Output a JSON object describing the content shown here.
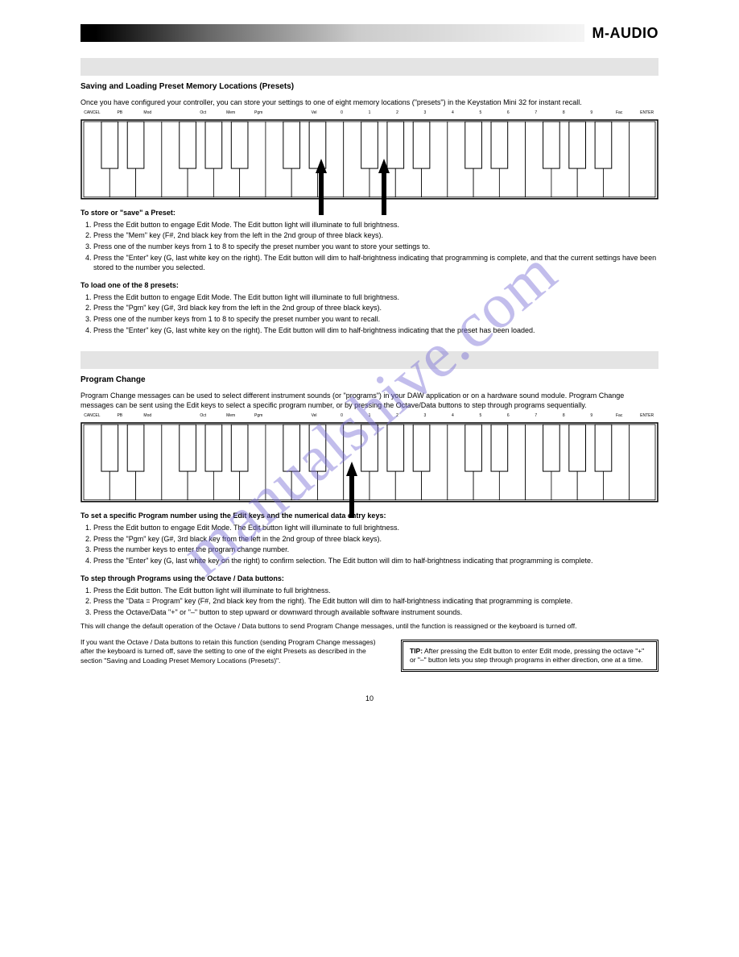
{
  "brand": "M-AUDIO",
  "watermark": "manualshive.com",
  "page_number": "10",
  "section1": {
    "heading_bg": "#e4e4e4",
    "title": "Saving and Loading Preset Memory Locations (Presets)",
    "intro": "Once you have configured your controller, you can store your settings to one of eight memory locations (\"presets\") in the Keystation Mini 32 for instant recall.",
    "save_title": "To store or \"save\" a Preset:",
    "save_steps": [
      "Press the Edit button to engage Edit Mode. The Edit button light will illuminate to full brightness.",
      "Press the \"Mem\" key (F#, 2nd black key from the left in the 2nd group of three black keys).",
      "Press one of the number keys from 1 to 8 to specify the preset number you want to store your settings to.",
      "Press the \"Enter\" key (G, last white key on the right). The Edit button will dim to half-brightness indicating that programming is complete, and that the current settings have been stored to the number you selected."
    ],
    "load_title": "To load one of the 8 presets:",
    "load_steps": [
      "Press the Edit button to engage Edit Mode. The Edit button light will illuminate to full brightness.",
      "Press the \"Pgm\" key (G#, 3rd black key from the left in the 2nd group of three black keys).",
      "Press one of the number keys from 1 to 8 to specify the preset number you want to recall.",
      "Press the \"Enter\" key (G, last white key on the right). The Edit button will dim to half-brightness indicating that the preset has been loaded."
    ]
  },
  "section2": {
    "title": "Program Change",
    "intro": "Program Change messages can be used to select different instrument sounds (or \"programs\") in your DAW application or on a hardware sound module. Program Change messages can be sent using the Edit keys to select a specific program number, or by pressing the Octave/Data buttons to step through programs sequentially.",
    "sub1_title": "To set a specific Program number using the Edit keys and the numerical data entry keys:",
    "sub1_steps": [
      "Press the Edit button to engage Edit Mode. The Edit button light will illuminate to full brightness.",
      "Press the \"Pgm\" key (G#, 3rd black key from the left in the 2nd group of three black keys).",
      "Press the number keys to enter the program change number.",
      "Press the \"Enter\" key (G, last white key on the right) to confirm selection. The Edit button will dim to half-brightness indicating that programming is complete."
    ],
    "sub2_title": "To step through Programs using the Octave / Data buttons:",
    "sub2_steps": [
      "Press the Edit button. The Edit button light will illuminate to full brightness.",
      "Press the \"Data = Program\" key (F#, 2nd black key from the right). The Edit button will dim to half-brightness indicating that programming is complete.",
      "Press the Octave/Data \"+\" or \"–\" button to step upward or downward through available software instrument sounds."
    ],
    "note1": "This will change the default operation of the Octave / Data buttons to send Program Change messages, until the function is reassigned or the keyboard is turned off.",
    "note2": "If you want the Octave / Data buttons to retain this function (sending Program Change messages) after the keyboard is turned off, save the setting to one of the eight Presets as described in the section \"Saving and Loading Preset Memory Locations (Presets)\"."
  },
  "tip": {
    "label": "TIP:",
    "text": "After pressing the Edit button to enter Edit mode, pressing the octave \"+\" or \"–\" button lets you step through programs in either direction, one at a time."
  },
  "key_labels": [
    "CANCEL",
    "PB",
    "Mod",
    "",
    "Oct",
    "Mem",
    "Pgm",
    "",
    "Vel",
    "0",
    "1",
    "2",
    "3",
    "4",
    "5",
    "6",
    "7",
    "8",
    "9",
    "Fac",
    "ENTER"
  ],
  "keyboard": {
    "white_keys": 22,
    "black_pattern": "wbwbwwbwbwbwwbwbwbwwbwbwbwwbwbwbw",
    "stroke": "#000",
    "fill_white": "#fff",
    "fill_black": "#fff",
    "black_border": "#000"
  },
  "arrows": {
    "kbd1": [
      {
        "left_pct": 40.6
      },
      {
        "left_pct": 51.5
      }
    ],
    "kbd2": [
      {
        "left_pct": 46.0
      }
    ]
  }
}
